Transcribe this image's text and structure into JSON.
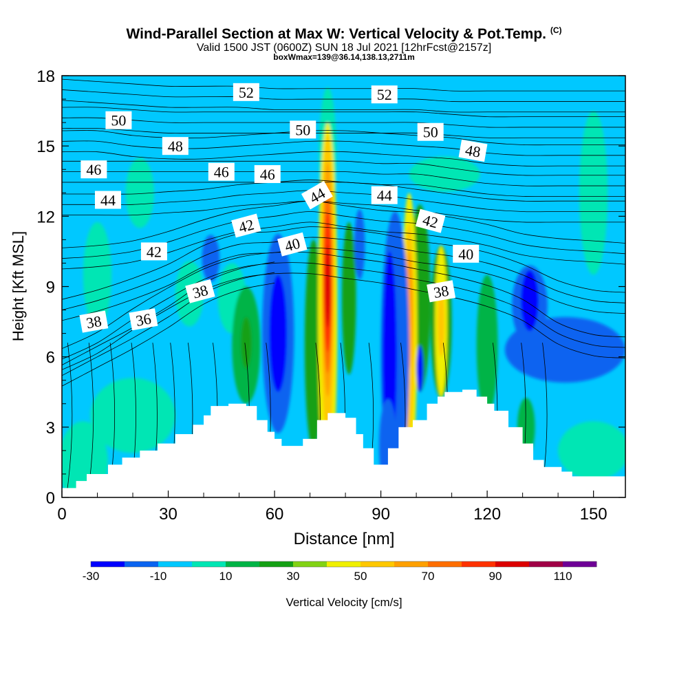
{
  "title": {
    "main": "Wind-Parallel Section at Max W: Vertical Velocity & Pot.Temp.",
    "copyright": "(C)",
    "valid": "Valid 1500 JST (0600Z) SUN 18 Jul 2021 [12hrFcst@2157z]",
    "box": "boxWmax=139@36.14,138.13,2711m"
  },
  "chart_data": {
    "type": "heatmap",
    "xlabel": "Distance [nm]",
    "ylabel": "Height [Kft MSL]",
    "xlim": [
      0,
      159
    ],
    "ylim": [
      0,
      18
    ],
    "xticks": [
      "0",
      "30",
      "60",
      "90",
      "120",
      "150"
    ],
    "yticks": [
      "0",
      "3",
      "6",
      "9",
      "12",
      "15",
      "18"
    ],
    "colorbar": {
      "label": "Vertical Velocity [cm/s]",
      "tick_labels": [
        "-30",
        "-10",
        "10",
        "30",
        "50",
        "70",
        "90",
        "110"
      ],
      "levels": [
        -30,
        -20,
        -10,
        0,
        10,
        20,
        30,
        40,
        50,
        60,
        70,
        80,
        90,
        100,
        110,
        120
      ],
      "colors": [
        "#0000ff",
        "#0a64f0",
        "#00c8ff",
        "#00e6b4",
        "#00b446",
        "#14a014",
        "#82d214",
        "#f0f000",
        "#ffc800",
        "#ffa000",
        "#ff6e00",
        "#ff3200",
        "#dc0000",
        "#a00046",
        "#6e0096"
      ]
    },
    "background_color": "#00c8ff",
    "terrain": [
      [
        0,
        0.4
      ],
      [
        4,
        0.7
      ],
      [
        7,
        1.0
      ],
      [
        13,
        1.4
      ],
      [
        17,
        1.7
      ],
      [
        22,
        2.0
      ],
      [
        27,
        2.3
      ],
      [
        32,
        2.7
      ],
      [
        37,
        3.1
      ],
      [
        40,
        3.5
      ],
      [
        42,
        3.9
      ],
      [
        47,
        4.0
      ],
      [
        52,
        3.9
      ],
      [
        55,
        3.3
      ],
      [
        58,
        2.8
      ],
      [
        60,
        2.5
      ],
      [
        62,
        2.2
      ],
      [
        66,
        2.2
      ],
      [
        68,
        2.5
      ],
      [
        72,
        3.3
      ],
      [
        75,
        3.6
      ],
      [
        78,
        3.6
      ],
      [
        80,
        3.4
      ],
      [
        83,
        2.7
      ],
      [
        85,
        2.1
      ],
      [
        88,
        1.4
      ],
      [
        90,
        1.4
      ],
      [
        92,
        2.1
      ],
      [
        95,
        3.0
      ],
      [
        99,
        3.3
      ],
      [
        103,
        4.0
      ],
      [
        106,
        4.3
      ],
      [
        108,
        4.5
      ],
      [
        113,
        4.6
      ],
      [
        117,
        4.3
      ],
      [
        120,
        4.0
      ],
      [
        122,
        3.7
      ],
      [
        126,
        3.0
      ],
      [
        130,
        2.3
      ],
      [
        133,
        1.6
      ],
      [
        136,
        1.3
      ],
      [
        141,
        1.1
      ],
      [
        144,
        0.9
      ],
      [
        160,
        0.9
      ]
    ],
    "velocity_cells": [
      {
        "x": 20,
        "y": 3.5,
        "w": 24,
        "h": 3.2,
        "value": 5
      },
      {
        "x": 6,
        "y": 1.5,
        "w": 14,
        "h": 3.5,
        "value": 5
      },
      {
        "x": 150,
        "y": 2.0,
        "w": 20,
        "h": 2.5,
        "value": 5
      },
      {
        "x": 108,
        "y": 13.8,
        "w": 20,
        "h": 1.5,
        "value": 5
      },
      {
        "x": 22,
        "y": 13.0,
        "w": 8,
        "h": 3.0,
        "value": 5
      },
      {
        "x": 150,
        "y": 13.0,
        "w": 8,
        "h": 7.0,
        "value": 5
      },
      {
        "x": 75,
        "y": 14.5,
        "w": 5,
        "h": 6.0,
        "value": 5
      },
      {
        "x": 10,
        "y": 9.5,
        "w": 8,
        "h": 4.5,
        "value": 5
      },
      {
        "x": 48,
        "y": 8.5,
        "w": 8,
        "h": 3.0,
        "value": 5
      },
      {
        "x": 36,
        "y": 8.7,
        "w": 8,
        "h": 2.8,
        "value": 5
      },
      {
        "x": 52,
        "y": 6.5,
        "w": 8,
        "h": 5.0,
        "value": 15
      },
      {
        "x": 52,
        "y": 6.6,
        "w": 3,
        "h": 2.2,
        "value": 25
      },
      {
        "x": 71,
        "y": 6.5,
        "w": 5,
        "h": 9.0,
        "value": 25
      },
      {
        "x": 81,
        "y": 8.5,
        "w": 4,
        "h": 6.5,
        "value": 25
      },
      {
        "x": 101,
        "y": 8.5,
        "w": 6,
        "h": 8.0,
        "value": 25
      },
      {
        "x": 120,
        "y": 6.5,
        "w": 6,
        "h": 6.0,
        "value": 15
      },
      {
        "x": 107,
        "y": 7.5,
        "w": 6,
        "h": 6.5,
        "value": 25
      },
      {
        "x": 131,
        "y": 3.0,
        "w": 5,
        "h": 2.5,
        "value": 15
      },
      {
        "x": 75,
        "y": 8.0,
        "w": 5.5,
        "h": 16.0,
        "value": 45
      },
      {
        "x": 75,
        "y": 9.0,
        "w": 4,
        "h": 13.0,
        "value": 55
      },
      {
        "x": 75,
        "y": 9.3,
        "w": 3,
        "h": 10.0,
        "value": 65
      },
      {
        "x": 75,
        "y": 9.3,
        "w": 2.6,
        "h": 8.0,
        "value": 75
      },
      {
        "x": 75,
        "y": 9.2,
        "w": 2.2,
        "h": 6.0,
        "value": 85
      },
      {
        "x": 75,
        "y": 9.0,
        "w": 1.5,
        "h": 3.5,
        "value": 95
      },
      {
        "x": 98,
        "y": 7.0,
        "w": 4.5,
        "h": 12.0,
        "value": 45
      },
      {
        "x": 98,
        "y": 7.2,
        "w": 3,
        "h": 9.0,
        "value": 55
      },
      {
        "x": 98,
        "y": 8.0,
        "w": 2,
        "h": 5.0,
        "value": 65
      },
      {
        "x": 107,
        "y": 7.5,
        "w": 3.5,
        "h": 6.5,
        "value": 45
      },
      {
        "x": 107,
        "y": 7.5,
        "w": 2,
        "h": 3.0,
        "value": 55
      },
      {
        "x": 61,
        "y": 7.0,
        "w": 9,
        "h": 8.5,
        "value": -15
      },
      {
        "x": 61,
        "y": 7.0,
        "w": 5,
        "h": 5.0,
        "value": -25
      },
      {
        "x": 94,
        "y": 6.2,
        "w": 8,
        "h": 12.0,
        "value": -15
      },
      {
        "x": 92.5,
        "y": 6.0,
        "w": 4,
        "h": 9.0,
        "value": -25
      },
      {
        "x": 42,
        "y": 10.2,
        "w": 5,
        "h": 2.0,
        "value": -15
      },
      {
        "x": 142,
        "y": 6.3,
        "w": 34,
        "h": 2.8,
        "value": -15
      },
      {
        "x": 132,
        "y": 8.2,
        "w": 10,
        "h": 3.4,
        "value": -15
      },
      {
        "x": 132,
        "y": 8.4,
        "w": 5,
        "h": 2.6,
        "value": -25
      },
      {
        "x": 84,
        "y": 10.8,
        "w": 3,
        "h": 3.0,
        "value": -15
      },
      {
        "x": 92,
        "y": 2.2,
        "w": 5,
        "h": 4.0,
        "value": -15
      },
      {
        "x": 101,
        "y": 5.5,
        "w": 2,
        "h": 2.0,
        "value": -25
      }
    ],
    "isentropes": [
      {
        "value": 36,
        "points": [
          [
            0,
            5.2
          ],
          [
            10,
            6.0
          ],
          [
            20,
            6.8
          ],
          [
            30,
            7.7
          ],
          [
            40,
            8.7
          ],
          [
            50,
            9.3
          ],
          [
            60,
            9.6
          ]
        ]
      },
      {
        "value": 38,
        "points": [
          [
            0,
            5.9
          ],
          [
            10,
            6.6
          ],
          [
            20,
            7.6
          ],
          [
            30,
            8.5
          ],
          [
            40,
            9.3
          ],
          [
            50,
            9.8
          ],
          [
            60,
            10.0
          ],
          [
            70,
            10.0
          ],
          [
            80,
            9.8
          ],
          [
            90,
            9.6
          ],
          [
            100,
            9.3
          ],
          [
            110,
            9.0
          ],
          [
            120,
            8.6
          ],
          [
            130,
            8.0
          ],
          [
            140,
            7.0
          ],
          [
            150,
            6.5
          ],
          [
            159,
            6.4
          ]
        ]
      },
      {
        "value": 40,
        "points": [
          [
            0,
            8.0
          ],
          [
            10,
            8.4
          ],
          [
            20,
            8.9
          ],
          [
            30,
            9.5
          ],
          [
            40,
            10.3
          ],
          [
            50,
            10.8
          ],
          [
            60,
            10.9
          ],
          [
            70,
            11.1
          ],
          [
            80,
            11.0
          ],
          [
            90,
            10.8
          ],
          [
            100,
            10.5
          ],
          [
            110,
            10.3
          ],
          [
            120,
            10.0
          ],
          [
            130,
            9.5
          ],
          [
            140,
            8.8
          ],
          [
            150,
            8.4
          ],
          [
            159,
            8.3
          ]
        ]
      },
      {
        "value": 42,
        "points": [
          [
            0,
            10.2
          ],
          [
            10,
            10.3
          ],
          [
            20,
            10.5
          ],
          [
            30,
            10.9
          ],
          [
            40,
            11.4
          ],
          [
            50,
            11.8
          ],
          [
            60,
            12.0
          ],
          [
            70,
            12.2
          ],
          [
            80,
            12.0
          ],
          [
            90,
            11.8
          ],
          [
            100,
            11.7
          ],
          [
            110,
            11.5
          ],
          [
            120,
            11.2
          ],
          [
            130,
            10.8
          ],
          [
            140,
            10.6
          ],
          [
            150,
            10.5
          ],
          [
            159,
            10.4
          ]
        ]
      },
      {
        "value": 44,
        "points": [
          [
            0,
            12.5
          ],
          [
            10,
            12.5
          ],
          [
            20,
            12.5
          ],
          [
            30,
            12.6
          ],
          [
            40,
            12.7
          ],
          [
            50,
            12.9
          ],
          [
            60,
            13.0
          ],
          [
            70,
            13.1
          ],
          [
            80,
            13.0
          ],
          [
            90,
            12.9
          ],
          [
            100,
            12.7
          ],
          [
            110,
            12.5
          ],
          [
            120,
            12.3
          ],
          [
            130,
            12.2
          ],
          [
            140,
            12.2
          ],
          [
            150,
            12.2
          ],
          [
            159,
            12.2
          ]
        ]
      },
      {
        "value": 46,
        "points": [
          [
            0,
            13.9
          ],
          [
            10,
            13.9
          ],
          [
            20,
            13.9
          ],
          [
            30,
            13.9
          ],
          [
            40,
            13.9
          ],
          [
            50,
            13.9
          ],
          [
            60,
            13.9
          ],
          [
            70,
            13.9
          ],
          [
            80,
            13.9
          ],
          [
            90,
            13.8
          ],
          [
            100,
            13.8
          ],
          [
            110,
            13.6
          ],
          [
            120,
            13.4
          ],
          [
            130,
            13.3
          ],
          [
            140,
            13.3
          ],
          [
            150,
            13.3
          ],
          [
            159,
            13.3
          ]
        ]
      },
      {
        "value": 48,
        "points": [
          [
            0,
            15.2
          ],
          [
            10,
            15.2
          ],
          [
            20,
            15.0
          ],
          [
            30,
            14.9
          ],
          [
            40,
            14.9
          ],
          [
            50,
            15.0
          ],
          [
            60,
            15.1
          ],
          [
            70,
            15.2
          ],
          [
            80,
            15.2
          ],
          [
            90,
            15.1
          ],
          [
            100,
            15.0
          ],
          [
            110,
            14.9
          ],
          [
            120,
            14.7
          ],
          [
            130,
            14.6
          ],
          [
            140,
            14.6
          ],
          [
            150,
            14.6
          ],
          [
            159,
            14.6
          ]
        ]
      },
      {
        "value": 50,
        "points": [
          [
            0,
            16.2
          ],
          [
            10,
            16.2
          ],
          [
            20,
            16.1
          ],
          [
            30,
            16.0
          ],
          [
            40,
            16.0
          ],
          [
            50,
            16.0
          ],
          [
            60,
            16.0
          ],
          [
            70,
            16.0
          ],
          [
            80,
            16.0
          ],
          [
            90,
            16.0
          ],
          [
            100,
            16.0
          ],
          [
            110,
            15.9
          ],
          [
            120,
            15.8
          ],
          [
            130,
            15.8
          ],
          [
            140,
            15.8
          ],
          [
            150,
            15.8
          ],
          [
            159,
            15.8
          ]
        ]
      },
      {
        "value": 52,
        "points": [
          [
            0,
            17.4
          ],
          [
            10,
            17.3
          ],
          [
            20,
            17.2
          ],
          [
            30,
            17.1
          ],
          [
            40,
            17.1
          ],
          [
            50,
            17.1
          ],
          [
            60,
            17.0
          ],
          [
            70,
            17.0
          ],
          [
            80,
            17.0
          ],
          [
            90,
            17.0
          ],
          [
            100,
            17.0
          ],
          [
            110,
            16.9
          ],
          [
            120,
            16.9
          ],
          [
            130,
            16.9
          ],
          [
            140,
            16.9
          ],
          [
            150,
            16.9
          ],
          [
            159,
            16.9
          ]
        ]
      }
    ],
    "contour_labels": [
      {
        "text": "52",
        "x": 52,
        "y": 17.3,
        "angle": 0
      },
      {
        "text": "52",
        "x": 91,
        "y": 17.2,
        "angle": 0
      },
      {
        "text": "50",
        "x": 16,
        "y": 16.1,
        "angle": 0
      },
      {
        "text": "50",
        "x": 68,
        "y": 15.7,
        "angle": 0
      },
      {
        "text": "50",
        "x": 104,
        "y": 15.6,
        "angle": 0
      },
      {
        "text": "48",
        "x": 32,
        "y": 15.0,
        "angle": 0
      },
      {
        "text": "48",
        "x": 116,
        "y": 14.8,
        "angle": 10
      },
      {
        "text": "46",
        "x": 9,
        "y": 14.0,
        "angle": 0
      },
      {
        "text": "46",
        "x": 45,
        "y": 13.9,
        "angle": 0
      },
      {
        "text": "46",
        "x": 58,
        "y": 13.8,
        "angle": 0
      },
      {
        "text": "44",
        "x": 13,
        "y": 12.7,
        "angle": 0
      },
      {
        "text": "44",
        "x": 72,
        "y": 12.9,
        "angle": -30
      },
      {
        "text": "44",
        "x": 91,
        "y": 12.9,
        "angle": 0
      },
      {
        "text": "42",
        "x": 52,
        "y": 11.6,
        "angle": -15
      },
      {
        "text": "42",
        "x": 104,
        "y": 11.8,
        "angle": 15
      },
      {
        "text": "42",
        "x": 26,
        "y": 10.5,
        "angle": 0
      },
      {
        "text": "40",
        "x": 65,
        "y": 10.8,
        "angle": -15
      },
      {
        "text": "40",
        "x": 114,
        "y": 10.4,
        "angle": 0
      },
      {
        "text": "38",
        "x": 39,
        "y": 8.8,
        "angle": -15
      },
      {
        "text": "38",
        "x": 107,
        "y": 8.8,
        "angle": -10
      },
      {
        "text": "38",
        "x": 9,
        "y": 7.5,
        "angle": -10
      },
      {
        "text": "36",
        "x": 23,
        "y": 7.6,
        "angle": -10
      }
    ],
    "terrain_iso_x": [
      2,
      8,
      14,
      20,
      26,
      31,
      36,
      43,
      52,
      58,
      72,
      79,
      87,
      96,
      108,
      122,
      130,
      136
    ]
  }
}
